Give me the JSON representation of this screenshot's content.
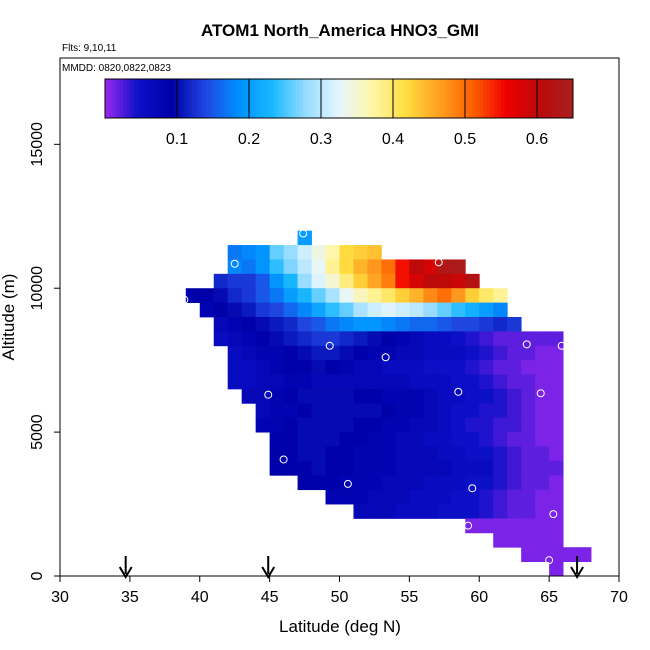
{
  "chart_data": {
    "type": "heatmap",
    "title": "ATOM1 North_America HNO3_GMI",
    "flights_label": "Flts: 9,10,11",
    "dates_label": "MMDD: 0820,0822,0823",
    "xlabel": "Latitude (deg N)",
    "ylabel": "Altitude (m)",
    "xlim": [
      30,
      70
    ],
    "ylim": [
      0,
      18000
    ],
    "xticks": [
      30,
      35,
      40,
      45,
      50,
      55,
      60,
      65,
      70
    ],
    "yticks": [
      0,
      5000,
      10000,
      15000
    ],
    "colorbar": {
      "min": 0.0,
      "max": 0.65,
      "ticks": [
        0.1,
        0.2,
        0.3,
        0.4,
        0.5,
        0.6
      ],
      "tick_labels": [
        "0.1",
        "0.2",
        "0.3",
        "0.4",
        "0.5",
        "0.6"
      ],
      "colors": [
        "#9a28ee",
        "#0c10c8",
        "#0000a8",
        "#1f46e0",
        "#0090ff",
        "#19b8ff",
        "#96dcff",
        "#e6f6ff",
        "#fff6a8",
        "#ffde40",
        "#ffa020",
        "#ff6000",
        "#f00000",
        "#ba0a0a",
        "#a82020"
      ]
    },
    "flight_arrows_lat": [
      34.7,
      44.9,
      67.0
    ],
    "cell_size": {
      "lat": 1.0,
      "alt": 500
    },
    "grid_bins": [
      {
        "alt": 11750,
        "lat_start": 47,
        "values": [
          0.2
        ]
      },
      {
        "alt": 11250,
        "lat_start": 42,
        "values": [
          0.17,
          0.18,
          0.19,
          0.26,
          0.28,
          0.31,
          0.34,
          0.37,
          0.42,
          0.43,
          0.44
        ]
      },
      {
        "alt": 10750,
        "lat_start": 42,
        "values": [
          0.18,
          0.17,
          0.19,
          0.24,
          0.27,
          0.3,
          0.33,
          0.38,
          0.42,
          0.45,
          0.47,
          0.5,
          0.55,
          0.6,
          0.58,
          0.63,
          0.64
        ]
      },
      {
        "alt": 10250,
        "lat_start": 41,
        "values": [
          0.12,
          0.13,
          0.13,
          0.15,
          0.19,
          0.23,
          0.28,
          0.32,
          0.35,
          0.39,
          0.43,
          0.46,
          0.49,
          0.55,
          0.58,
          0.6,
          0.6,
          0.59,
          0.62
        ]
      },
      {
        "alt": 9750,
        "lat_start": 39,
        "values": [
          0.09,
          0.09,
          0.1,
          0.12,
          0.13,
          0.15,
          0.17,
          0.2,
          0.23,
          0.26,
          0.29,
          0.33,
          0.36,
          0.38,
          0.4,
          0.43,
          0.45,
          0.48,
          0.5,
          0.47,
          0.43,
          0.4,
          0.38
        ]
      },
      {
        "alt": 9250,
        "lat_start": 40,
        "values": [
          0.08,
          0.09,
          0.1,
          0.11,
          0.13,
          0.14,
          0.16,
          0.18,
          0.21,
          0.24,
          0.26,
          0.29,
          0.31,
          0.32,
          0.31,
          0.3,
          0.28,
          0.26,
          0.24,
          0.22,
          0.2,
          0.18
        ]
      },
      {
        "alt": 8750,
        "lat_start": 41,
        "values": [
          0.07,
          0.08,
          0.09,
          0.1,
          0.11,
          0.12,
          0.14,
          0.15,
          0.17,
          0.18,
          0.19,
          0.19,
          0.18,
          0.17,
          0.16,
          0.16,
          0.15,
          0.14,
          0.14,
          0.13,
          0.12,
          0.13
        ]
      },
      {
        "alt": 8250,
        "lat_start": 41,
        "values": [
          0.06,
          0.07,
          0.08,
          0.09,
          0.1,
          0.11,
          0.12,
          0.13,
          0.13,
          0.12,
          0.11,
          0.1,
          0.09,
          0.08,
          0.07,
          0.06,
          0.06,
          0.05,
          0.04,
          0.03,
          0.02,
          0.02,
          0.02,
          0.02,
          0.02
        ]
      },
      {
        "alt": 7750,
        "lat_start": 42,
        "values": [
          0.06,
          0.07,
          0.08,
          0.08,
          0.09,
          0.1,
          0.11,
          0.11,
          0.1,
          0.09,
          0.08,
          0.08,
          0.07,
          0.07,
          0.06,
          0.06,
          0.06,
          0.05,
          0.04,
          0.03,
          0.02,
          0.02,
          0.01,
          0.01
        ]
      },
      {
        "alt": 7250,
        "lat_start": 42,
        "values": [
          0.06,
          0.06,
          0.07,
          0.08,
          0.09,
          0.09,
          0.1,
          0.09,
          0.08,
          0.07,
          0.07,
          0.06,
          0.06,
          0.06,
          0.05,
          0.05,
          0.05,
          0.04,
          0.03,
          0.02,
          0.02,
          0.01,
          0.01,
          0.01
        ]
      },
      {
        "alt": 6750,
        "lat_start": 42,
        "values": [
          0.06,
          0.06,
          0.07,
          0.07,
          0.08,
          0.08,
          0.07,
          0.07,
          0.07,
          0.07,
          0.07,
          0.07,
          0.07,
          0.06,
          0.06,
          0.06,
          0.05,
          0.05,
          0.04,
          0.03,
          0.02,
          0.02,
          0.01,
          0.01
        ]
      },
      {
        "alt": 6250,
        "lat_start": 43,
        "values": [
          0.07,
          0.07,
          0.08,
          0.09,
          0.1,
          0.1,
          0.1,
          0.1,
          0.09,
          0.09,
          0.08,
          0.08,
          0.08,
          0.07,
          0.06,
          0.06,
          0.05,
          0.05,
          0.04,
          0.03,
          0.02,
          0.01,
          0.01
        ]
      },
      {
        "alt": 5750,
        "lat_start": 44,
        "values": [
          0.07,
          0.08,
          0.08,
          0.09,
          0.1,
          0.1,
          0.1,
          0.1,
          0.1,
          0.09,
          0.08,
          0.08,
          0.07,
          0.06,
          0.05,
          0.05,
          0.04,
          0.04,
          0.03,
          0.02,
          0.01,
          0.01
        ]
      },
      {
        "alt": 5250,
        "lat_start": 44,
        "values": [
          0.08,
          0.08,
          0.09,
          0.1,
          0.1,
          0.1,
          0.1,
          0.09,
          0.09,
          0.08,
          0.08,
          0.07,
          0.07,
          0.06,
          0.05,
          0.04,
          0.04,
          0.03,
          0.03,
          0.02,
          0.01,
          0.01
        ]
      },
      {
        "alt": 4750,
        "lat_start": 45,
        "values": [
          0.09,
          0.09,
          0.1,
          0.1,
          0.1,
          0.09,
          0.09,
          0.08,
          0.08,
          0.07,
          0.07,
          0.06,
          0.06,
          0.05,
          0.05,
          0.04,
          0.03,
          0.02,
          0.02,
          0.01,
          0.01
        ]
      },
      {
        "alt": 4250,
        "lat_start": 45,
        "values": [
          0.09,
          0.09,
          0.1,
          0.1,
          0.09,
          0.09,
          0.08,
          0.08,
          0.08,
          0.07,
          0.07,
          0.07,
          0.06,
          0.06,
          0.05,
          0.05,
          0.04,
          0.03,
          0.02,
          0.02,
          0.01
        ]
      },
      {
        "alt": 3750,
        "lat_start": 45,
        "values": [
          0.09,
          0.09,
          0.09,
          0.1,
          0.09,
          0.09,
          0.08,
          0.08,
          0.08,
          0.07,
          0.07,
          0.07,
          0.07,
          0.06,
          0.06,
          0.06,
          0.04,
          0.03,
          0.02,
          0.02,
          0.02
        ]
      },
      {
        "alt": 3250,
        "lat_start": 47,
        "values": [
          0.09,
          0.09,
          0.09,
          0.08,
          0.08,
          0.08,
          0.07,
          0.07,
          0.07,
          0.06,
          0.06,
          0.06,
          0.05,
          0.05,
          0.04,
          0.03,
          0.02,
          0.02,
          0.01
        ]
      },
      {
        "alt": 2750,
        "lat_start": 49,
        "values": [
          0.08,
          0.08,
          0.08,
          0.07,
          0.07,
          0.07,
          0.06,
          0.06,
          0.06,
          0.05,
          0.05,
          0.04,
          0.03,
          0.02,
          0.02,
          0.01,
          0.01
        ]
      },
      {
        "alt": 2250,
        "lat_start": 51,
        "values": [
          0.07,
          0.07,
          0.07,
          0.06,
          0.06,
          0.06,
          0.05,
          0.05,
          0.05,
          0.04,
          0.03,
          0.02,
          0.02,
          0.01,
          0.01
        ]
      },
      {
        "alt": 1750,
        "lat_start": 59,
        "values": [
          0.01,
          0.01,
          0.01,
          0.01,
          0.01,
          0.01,
          0.01
        ]
      },
      {
        "alt": 1250,
        "lat_start": 61,
        "values": [
          0.01,
          0.01,
          0.01,
          0.01,
          0.01
        ]
      },
      {
        "alt": 750,
        "lat_start": 63,
        "values": [
          0.01,
          0.01,
          0.01,
          0.01,
          0.01
        ]
      },
      {
        "alt": 250,
        "lat_start": 65,
        "values": [
          0.01
        ]
      }
    ],
    "sample_markers": [
      {
        "lat": 47.4,
        "alt": 11900
      },
      {
        "lat": 42.5,
        "alt": 10850
      },
      {
        "lat": 57.1,
        "alt": 10900
      },
      {
        "lat": 38.9,
        "alt": 9600
      },
      {
        "lat": 49.3,
        "alt": 8000
      },
      {
        "lat": 53.3,
        "alt": 7600
      },
      {
        "lat": 63.4,
        "alt": 8050
      },
      {
        "lat": 65.9,
        "alt": 8000
      },
      {
        "lat": 44.9,
        "alt": 6300
      },
      {
        "lat": 58.5,
        "alt": 6400
      },
      {
        "lat": 64.4,
        "alt": 6350
      },
      {
        "lat": 46.0,
        "alt": 4050
      },
      {
        "lat": 50.6,
        "alt": 3200
      },
      {
        "lat": 59.5,
        "alt": 3050
      },
      {
        "lat": 65.3,
        "alt": 2150
      },
      {
        "lat": 59.2,
        "alt": 1750
      },
      {
        "lat": 65.0,
        "alt": 550
      }
    ]
  }
}
